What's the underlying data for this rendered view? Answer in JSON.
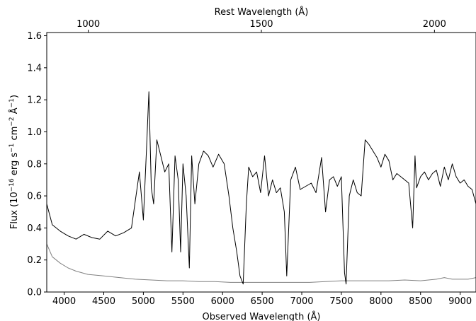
{
  "chart_data": {
    "type": "line",
    "xlabel": "Observed Wavelength (Å)",
    "top_xlabel": "Rest Wavelength (Å)",
    "ylabel_parts": {
      "prefix": "Flux (10",
      "exp1": "−16",
      "mid1": " erg s",
      "exp2": "−1",
      "mid2": " cm",
      "exp3": "−2",
      "mid3": " Å",
      "exp4": "−1",
      "suffix": ")"
    },
    "xlim": [
      3780,
      9200
    ],
    "ylim": [
      0.0,
      1.62
    ],
    "top_xlim": [
      880,
      2120
    ],
    "xticks": [
      4000,
      4500,
      5000,
      5500,
      6000,
      6500,
      7000,
      7500,
      8000,
      8500,
      9000
    ],
    "xtick_labels": [
      "4000",
      "4500",
      "5000",
      "5500",
      "6000",
      "6500",
      "7000",
      "7500",
      "8000",
      "8500",
      "9000"
    ],
    "yticks": [
      0.0,
      0.2,
      0.4,
      0.6,
      0.8,
      1.0,
      1.2,
      1.4,
      1.6
    ],
    "ytick_labels": [
      "0.0",
      "0.2",
      "0.4",
      "0.6",
      "0.8",
      "1.0",
      "1.2",
      "1.4",
      "1.6"
    ],
    "top_xticks": [
      1000,
      1500,
      2000
    ],
    "top_xtick_labels": [
      "1000",
      "1500",
      "2000"
    ],
    "grid": false,
    "legend": "none",
    "series": [
      {
        "color": "#000000",
        "x": [
          3780,
          3850,
          3950,
          4050,
          4150,
          4250,
          4350,
          4450,
          4550,
          4650,
          4750,
          4850,
          4950,
          5000,
          5040,
          5070,
          5100,
          5130,
          5170,
          5220,
          5270,
          5320,
          5360,
          5400,
          5440,
          5470,
          5500,
          5540,
          5580,
          5610,
          5650,
          5700,
          5760,
          5820,
          5880,
          5950,
          6020,
          6080,
          6130,
          6180,
          6220,
          6260,
          6300,
          6330,
          6380,
          6430,
          6480,
          6530,
          6580,
          6630,
          6680,
          6730,
          6780,
          6810,
          6860,
          6920,
          6980,
          7050,
          7120,
          7180,
          7250,
          7300,
          7350,
          7400,
          7450,
          7500,
          7540,
          7560,
          7600,
          7650,
          7700,
          7750,
          7800,
          7850,
          7900,
          7950,
          8000,
          8050,
          8100,
          8150,
          8200,
          8250,
          8300,
          8350,
          8400,
          8430,
          8450,
          8500,
          8550,
          8600,
          8650,
          8700,
          8750,
          8800,
          8850,
          8900,
          8950,
          9000,
          9050,
          9100,
          9150,
          9200
        ],
        "y": [
          0.55,
          0.42,
          0.38,
          0.35,
          0.33,
          0.36,
          0.34,
          0.33,
          0.38,
          0.35,
          0.37,
          0.4,
          0.75,
          0.45,
          0.9,
          1.25,
          0.65,
          0.55,
          0.95,
          0.85,
          0.75,
          0.8,
          0.25,
          0.85,
          0.7,
          0.25,
          0.8,
          0.6,
          0.15,
          0.85,
          0.55,
          0.8,
          0.88,
          0.85,
          0.78,
          0.86,
          0.8,
          0.6,
          0.4,
          0.25,
          0.1,
          0.05,
          0.55,
          0.78,
          0.72,
          0.75,
          0.62,
          0.85,
          0.6,
          0.7,
          0.62,
          0.65,
          0.5,
          0.1,
          0.7,
          0.78,
          0.64,
          0.66,
          0.68,
          0.62,
          0.84,
          0.5,
          0.7,
          0.72,
          0.66,
          0.72,
          0.12,
          0.05,
          0.6,
          0.7,
          0.62,
          0.6,
          0.95,
          0.92,
          0.88,
          0.84,
          0.78,
          0.86,
          0.82,
          0.7,
          0.74,
          0.72,
          0.7,
          0.68,
          0.4,
          0.85,
          0.65,
          0.72,
          0.75,
          0.7,
          0.74,
          0.76,
          0.66,
          0.78,
          0.7,
          0.8,
          0.72,
          0.68,
          0.7,
          0.66,
          0.64,
          0.55
        ]
      },
      {
        "color": "#808080",
        "x": [
          3780,
          3850,
          3950,
          4050,
          4150,
          4300,
          4500,
          4700,
          4900,
          5100,
          5300,
          5500,
          5700,
          5900,
          6100,
          6300,
          6500,
          6700,
          6900,
          7100,
          7300,
          7500,
          7700,
          7900,
          8100,
          8300,
          8500,
          8700,
          8800,
          8900,
          9000,
          9100,
          9200
        ],
        "y": [
          0.3,
          0.22,
          0.18,
          0.15,
          0.13,
          0.11,
          0.1,
          0.09,
          0.08,
          0.075,
          0.07,
          0.07,
          0.065,
          0.065,
          0.06,
          0.06,
          0.06,
          0.06,
          0.06,
          0.06,
          0.065,
          0.07,
          0.07,
          0.07,
          0.07,
          0.075,
          0.07,
          0.08,
          0.09,
          0.08,
          0.08,
          0.08,
          0.09
        ]
      }
    ]
  }
}
